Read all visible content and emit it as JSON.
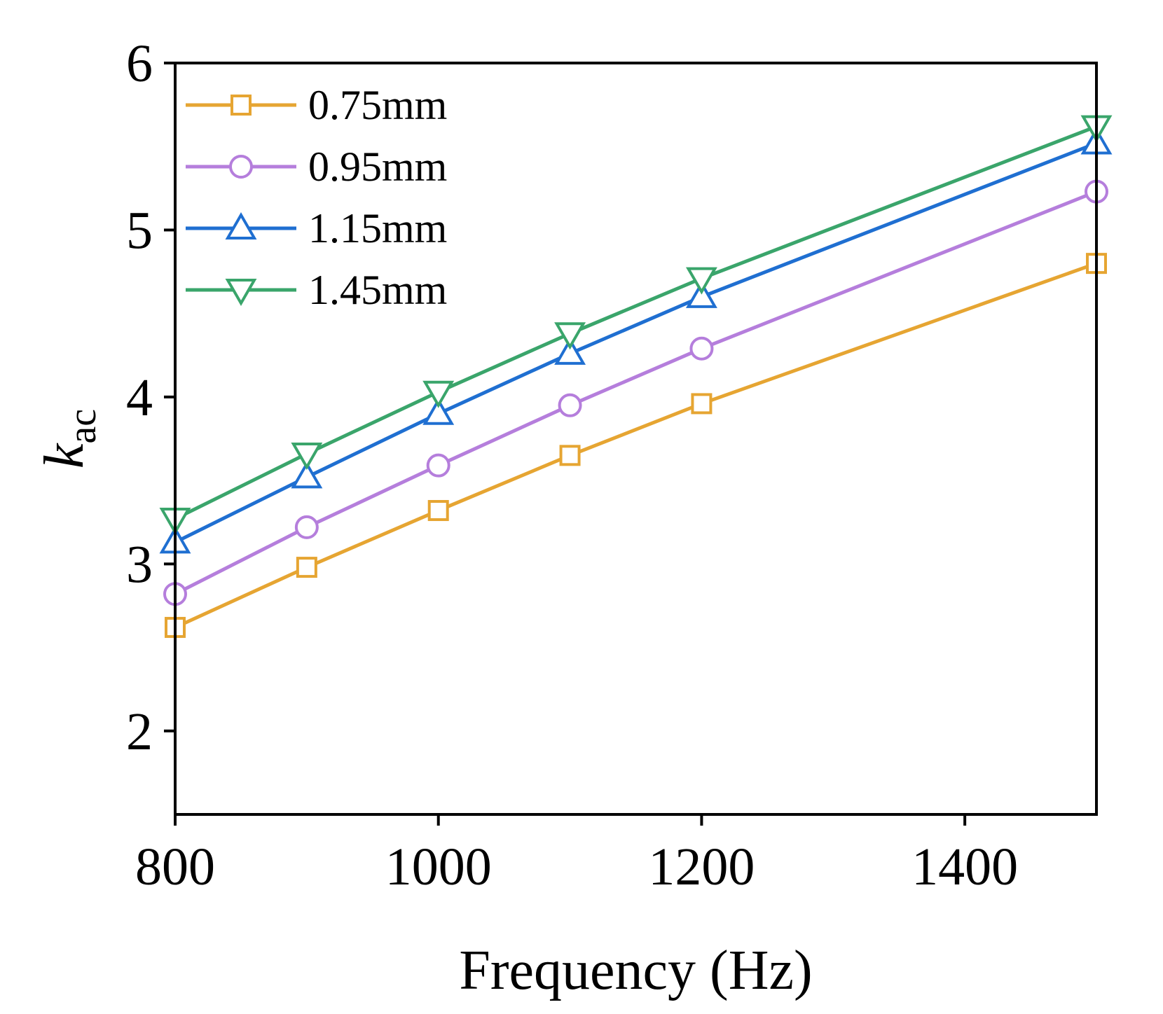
{
  "chart_data": {
    "type": "line",
    "xlabel": "Frequency (Hz)",
    "ylabel_main": "k",
    "ylabel_sub": "ac",
    "xlim": [
      800,
      1500
    ],
    "ylim": [
      1.5,
      6
    ],
    "xticks": [
      800,
      1000,
      1200,
      1400
    ],
    "yticks": [
      2,
      3,
      4,
      5,
      6
    ],
    "x": [
      800,
      900,
      1000,
      1100,
      1200,
      1500
    ],
    "grid": false,
    "legend_position": "top-left",
    "series": [
      {
        "name": "0.75mm",
        "marker": "square",
        "color": "#E6A532",
        "values": [
          2.62,
          2.98,
          3.32,
          3.65,
          3.96,
          4.8
        ]
      },
      {
        "name": "0.95mm",
        "marker": "circle",
        "color": "#B57EDC",
        "values": [
          2.82,
          3.22,
          3.59,
          3.95,
          4.29,
          5.23
        ]
      },
      {
        "name": "1.15mm",
        "marker": "triangle-up",
        "color": "#1F6FD1",
        "values": [
          3.13,
          3.52,
          3.9,
          4.26,
          4.6,
          5.52
        ]
      },
      {
        "name": "1.45mm",
        "marker": "triangle-down",
        "color": "#3AA56B",
        "values": [
          3.27,
          3.66,
          4.03,
          4.38,
          4.71,
          5.62
        ]
      }
    ]
  }
}
